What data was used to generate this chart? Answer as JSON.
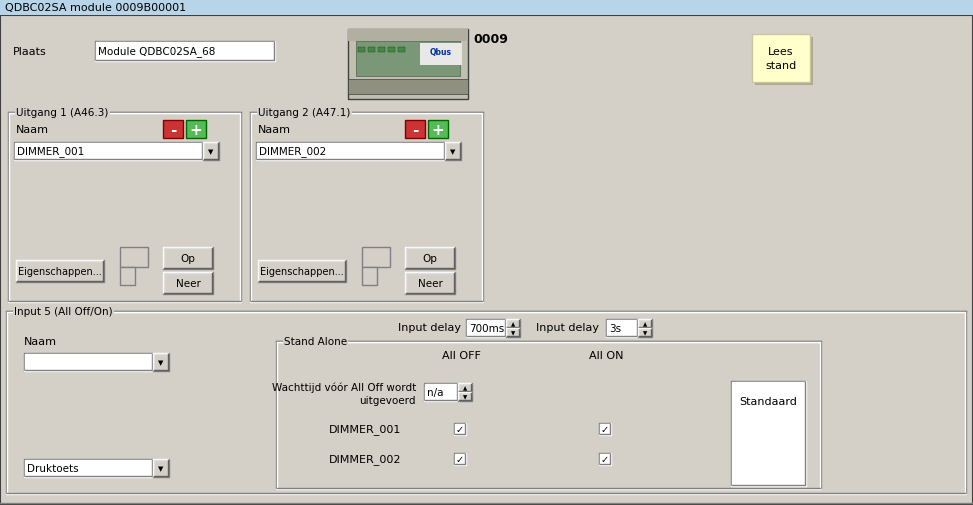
{
  "title": "QDBC02SA module 0009B00001",
  "title_bar_color": "#b8d4e8",
  "bg_color": "#d4d0c8",
  "white": "#ffffff",
  "light_yellow": "#ffffcc",
  "red_btn": "#cc3333",
  "green_btn": "#55bb55",
  "text_color": "#000000",
  "panel_bg": "#d4d0c8",
  "input_bg": "#ffffff",
  "plaats_label": "Plaats",
  "plaats_value": "Module QDBC02SA_68",
  "module_number": "0009",
  "lees_stand": "Lees\nstand",
  "uitgang1_label": "Uitgang 1 (A46.3)",
  "uitgang2_label": "Uitgang 2 (A47.1)",
  "naam_label": "Naam",
  "dimmer1": "DIMMER_001",
  "dimmer2": "DIMMER_002",
  "eigenschappen": "Eigenschappen...",
  "op_btn": "Op",
  "neer_btn": "Neer",
  "input5_label": "Input 5 (All Off/On)",
  "naam_label2": "Naam",
  "druktoets": "Druktoets",
  "input_delay1_label": "Input delay",
  "input_delay1_val": "700ms",
  "input_delay2_label": "Input delay",
  "input_delay2_val": "3s",
  "stand_alone_label": "Stand Alone",
  "all_off_label": "All OFF",
  "all_on_label": "All ON",
  "wacht_label": "Wachttijd vóór All Off wordt\nuitgevoerd",
  "nva_val": "n/a",
  "standaard_btn": "Standaard",
  "dimmer1_row": "DIMMER_001",
  "dimmer2_row": "DIMMER_002"
}
